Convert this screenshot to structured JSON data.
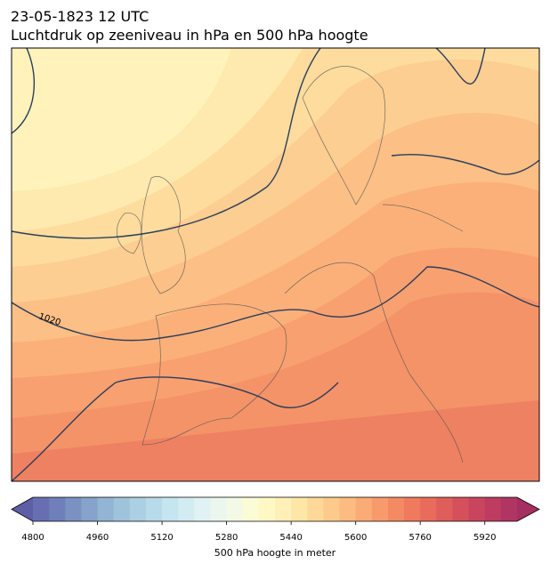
{
  "header": {
    "title": "23-05-1823 12 UTC",
    "subtitle": "Luchtdruk op zeeniveau in hPa en 500 hPa hoogte"
  },
  "map": {
    "isobar_labels": [
      1020
    ]
  },
  "colorbar": {
    "label": "500 hPa hoogte in meter",
    "lim": [
      4800,
      6000
    ],
    "ticks": [
      4800,
      4960,
      5120,
      5280,
      5440,
      5600,
      5760,
      5920
    ],
    "colors": [
      "#676fb2",
      "#6f7fba",
      "#7a91c2",
      "#86a3cb",
      "#93b5d4",
      "#a0c3dc",
      "#acd0e3",
      "#b8dbea",
      "#c5e5ef",
      "#d3ecf2",
      "#e0f2f3",
      "#ebf6ef",
      "#f4f9e6",
      "#fbfbd5",
      "#fff8c5",
      "#fff0b7",
      "#fee6a7",
      "#fed899",
      "#fdca8c",
      "#fcbb80",
      "#fbab75",
      "#f89b6c",
      "#f48a64",
      "#ef7a5e",
      "#e86b5b",
      "#df5d5a",
      "#d5505b",
      "#c9455e",
      "#bd3c60",
      "#b03563"
    ],
    "under_color": "#5d5ea6",
    "over_color": "#a42f60"
  }
}
